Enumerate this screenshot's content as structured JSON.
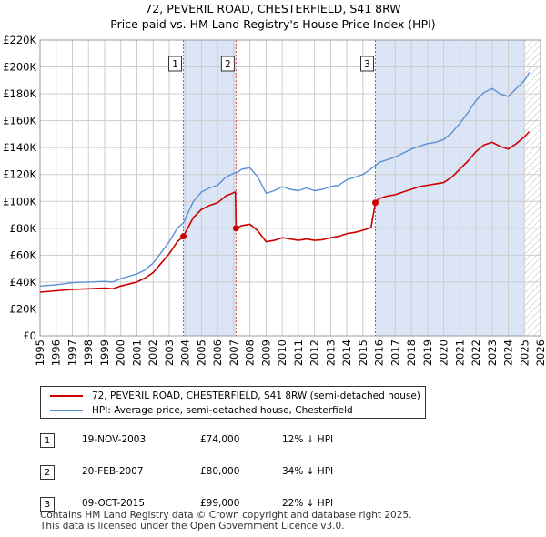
{
  "title": "72, PEVERIL ROAD, CHESTERFIELD, S41 8RW",
  "subtitle": "Price paid vs. HM Land Registry's House Price Index (HPI)",
  "colors": {
    "property": "#cc0000",
    "hpi": "#5b8fd4",
    "shade": "#dbe5f5",
    "marker_line": "#dd4444",
    "grid": "#cccccc"
  },
  "legend": {
    "property": "72, PEVERIL ROAD, CHESTERFIELD, S41 8RW (semi-detached house)",
    "hpi": "HPI: Average price, semi-detached house, Chesterfield"
  },
  "sales": [
    {
      "num": "1",
      "date": "19-NOV-2003",
      "price": "£74,000",
      "hpi": "12% ↓ HPI"
    },
    {
      "num": "2",
      "date": "20-FEB-2007",
      "price": "£80,000",
      "hpi": "34% ↓ HPI"
    },
    {
      "num": "3",
      "date": "09-OCT-2015",
      "price": "£99,000",
      "hpi": "22% ↓ HPI"
    }
  ],
  "footer": {
    "line1": "Contains HM Land Registry data © Crown copyright and database right 2025.",
    "line2": "This data is licensed under the Open Government Licence v3.0."
  },
  "chart_data": {
    "type": "line",
    "xlim": [
      1995,
      2026
    ],
    "ylim": [
      0,
      220000
    ],
    "yticks": [
      0,
      20000,
      40000,
      60000,
      80000,
      100000,
      120000,
      140000,
      160000,
      180000,
      200000,
      220000
    ],
    "ytick_labels": [
      "£0",
      "£20K",
      "£40K",
      "£60K",
      "£80K",
      "£100K",
      "£120K",
      "£140K",
      "£160K",
      "£180K",
      "£200K",
      "£220K"
    ],
    "xticks": [
      1995,
      1996,
      1997,
      1998,
      1999,
      2000,
      2001,
      2002,
      2003,
      2004,
      2005,
      2006,
      2007,
      2008,
      2009,
      2010,
      2011,
      2012,
      2013,
      2014,
      2015,
      2016,
      2017,
      2018,
      2019,
      2020,
      2021,
      2022,
      2023,
      2024,
      2025,
      2026
    ],
    "grid": true,
    "legend_position": "below",
    "shaded_ranges": [
      [
        2003.88,
        2007.14
      ],
      [
        2015.77,
        2025.0
      ]
    ],
    "hatched_range": [
      2025.0,
      2026
    ],
    "series": [
      {
        "key": "hpi",
        "x": [
          1995,
          1996,
          1997,
          1998,
          1999,
          1999.5,
          2000,
          2001,
          2001.5,
          2002,
          2002.5,
          2003,
          2003.5,
          2003.88,
          2004.5,
          2005,
          2005.5,
          2006,
          2006.5,
          2007,
          2007.14,
          2007.5,
          2008,
          2008.5,
          2009,
          2009.5,
          2010,
          2010.5,
          2011,
          2011.5,
          2012,
          2012.5,
          2013,
          2013.5,
          2014,
          2014.5,
          2015,
          2015.77,
          2016,
          2016.5,
          2017,
          2017.5,
          2018,
          2018.5,
          2019,
          2019.5,
          2020,
          2020.5,
          2021,
          2021.5,
          2022,
          2022.5,
          2023,
          2023.5,
          2024,
          2024.5,
          2025,
          2025.3
        ],
        "values": [
          37000,
          38000,
          39500,
          40000,
          40500,
          40000,
          42500,
          46000,
          49000,
          54000,
          62000,
          70000,
          80000,
          84000,
          100000,
          107000,
          110000,
          112000,
          118000,
          121000,
          121000,
          124000,
          125000,
          118000,
          106000,
          108000,
          111000,
          109000,
          108000,
          110000,
          108000,
          109000,
          111000,
          112000,
          116000,
          118000,
          120000,
          126500,
          129000,
          131000,
          133000,
          136000,
          139000,
          141000,
          143000,
          144000,
          146000,
          151000,
          158000,
          166000,
          175000,
          181000,
          184000,
          180000,
          178000,
          184000,
          190000,
          196000
        ]
      },
      {
        "key": "property",
        "x": [
          1995,
          1996,
          1997,
          1998,
          1999,
          1999.5,
          2000,
          2001,
          2001.5,
          2002,
          2002.5,
          2003,
          2003.5,
          2003.88,
          2004.5,
          2005,
          2005.5,
          2006,
          2006.5,
          2007.1,
          2007.14,
          2007.5,
          2008,
          2008.5,
          2009,
          2009.5,
          2010,
          2010.5,
          2011,
          2011.5,
          2012,
          2012.5,
          2013,
          2013.5,
          2014,
          2014.5,
          2015,
          2015.5,
          2015.77,
          2016,
          2016.5,
          2017,
          2017.5,
          2018,
          2018.5,
          2019,
          2019.5,
          2020,
          2020.5,
          2021,
          2021.5,
          2022,
          2022.5,
          2023,
          2023.5,
          2024,
          2024.5,
          2025,
          2025.3
        ],
        "values": [
          32500,
          33500,
          34500,
          35000,
          35500,
          35000,
          37000,
          40000,
          43000,
          47000,
          54000,
          61000,
          70000,
          74000,
          88000,
          94000,
          97000,
          99000,
          104000,
          107000,
          80000,
          82000,
          83000,
          78000,
          70000,
          71000,
          73000,
          72000,
          71000,
          72000,
          71000,
          71500,
          73000,
          74000,
          76000,
          77000,
          78500,
          80500,
          99000,
          102000,
          104000,
          105000,
          107000,
          109000,
          111000,
          112000,
          113000,
          114000,
          118000,
          124000,
          130000,
          137000,
          142000,
          144000,
          141000,
          139000,
          143000,
          148000,
          152000
        ]
      }
    ],
    "markers": [
      {
        "label": "1",
        "x": 2003.88,
        "y": 74000
      },
      {
        "label": "2",
        "x": 2007.14,
        "y": 80000
      },
      {
        "label": "3",
        "x": 2015.77,
        "y": 99000
      }
    ]
  }
}
